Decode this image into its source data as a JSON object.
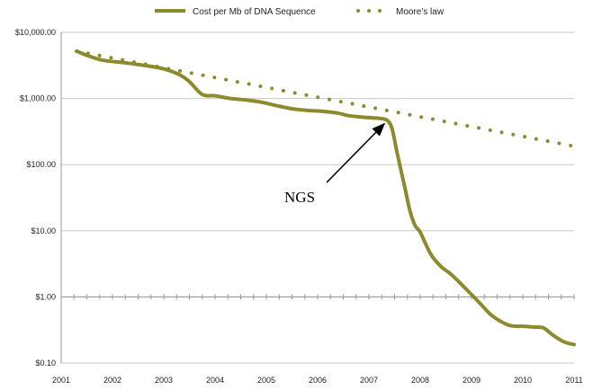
{
  "colors": {
    "series": "#8c8a2d",
    "grid": "#c8c8c8",
    "axis": "#999999",
    "annotation": "#000000"
  },
  "chart_data": {
    "type": "line",
    "title": "",
    "xlabel": "",
    "ylabel": "",
    "yscale": "log",
    "xlim": [
      2001,
      2011
    ],
    "ylim": [
      0.1,
      10000
    ],
    "grid": true,
    "legend_position": "top",
    "x_ticks": [
      "2001",
      "2002",
      "2003",
      "2004",
      "2005",
      "2006",
      "2007",
      "2008",
      "2009",
      "2010",
      "2011"
    ],
    "x_tick_values": [
      2001,
      2002,
      2003,
      2004,
      2005,
      2006,
      2007,
      2008,
      2009,
      2010,
      2011
    ],
    "y_ticks": [
      "$10,000.00",
      "$1,000.00",
      "$100.00",
      "$10.00",
      "$1.00",
      "$0.10"
    ],
    "y_tick_values": [
      10000,
      1000,
      100,
      10,
      1,
      0.1
    ],
    "series": [
      {
        "name": "Cost per Mb of DNA Sequence",
        "style": "solid",
        "x": [
          2001.3,
          2001.5,
          2001.8,
          2002.2,
          2002.7,
          2003.0,
          2003.3,
          2003.5,
          2003.75,
          2004.0,
          2004.3,
          2004.6,
          2004.9,
          2005.2,
          2005.5,
          2005.8,
          2006.1,
          2006.4,
          2006.6,
          2006.9,
          2007.2,
          2007.35,
          2007.45,
          2007.55,
          2007.7,
          2007.8,
          2007.9,
          2008.0,
          2008.2,
          2008.4,
          2008.6,
          2008.9,
          2009.2,
          2009.4,
          2009.7,
          2009.9,
          2010.0,
          2010.2,
          2010.4,
          2010.6,
          2010.8,
          2011.0
        ],
        "y": [
          5200,
          4500,
          3800,
          3500,
          3100,
          2800,
          2300,
          1800,
          1150,
          1100,
          1000,
          950,
          880,
          780,
          700,
          660,
          640,
          600,
          550,
          520,
          500,
          470,
          350,
          150,
          45,
          20,
          12,
          9.5,
          4.5,
          2.9,
          2.2,
          1.3,
          0.75,
          0.52,
          0.38,
          0.36,
          0.36,
          0.35,
          0.34,
          0.26,
          0.21,
          0.19
        ]
      },
      {
        "name": "Moore's law",
        "style": "dotted",
        "x": [
          2001.3,
          2011.0
        ],
        "y": [
          5200,
          190
        ]
      }
    ],
    "annotations": [
      {
        "text": "NGS",
        "x": 2005.65,
        "y": 27,
        "arrow_to_x": 2007.3,
        "arrow_to_y": 470
      }
    ]
  }
}
